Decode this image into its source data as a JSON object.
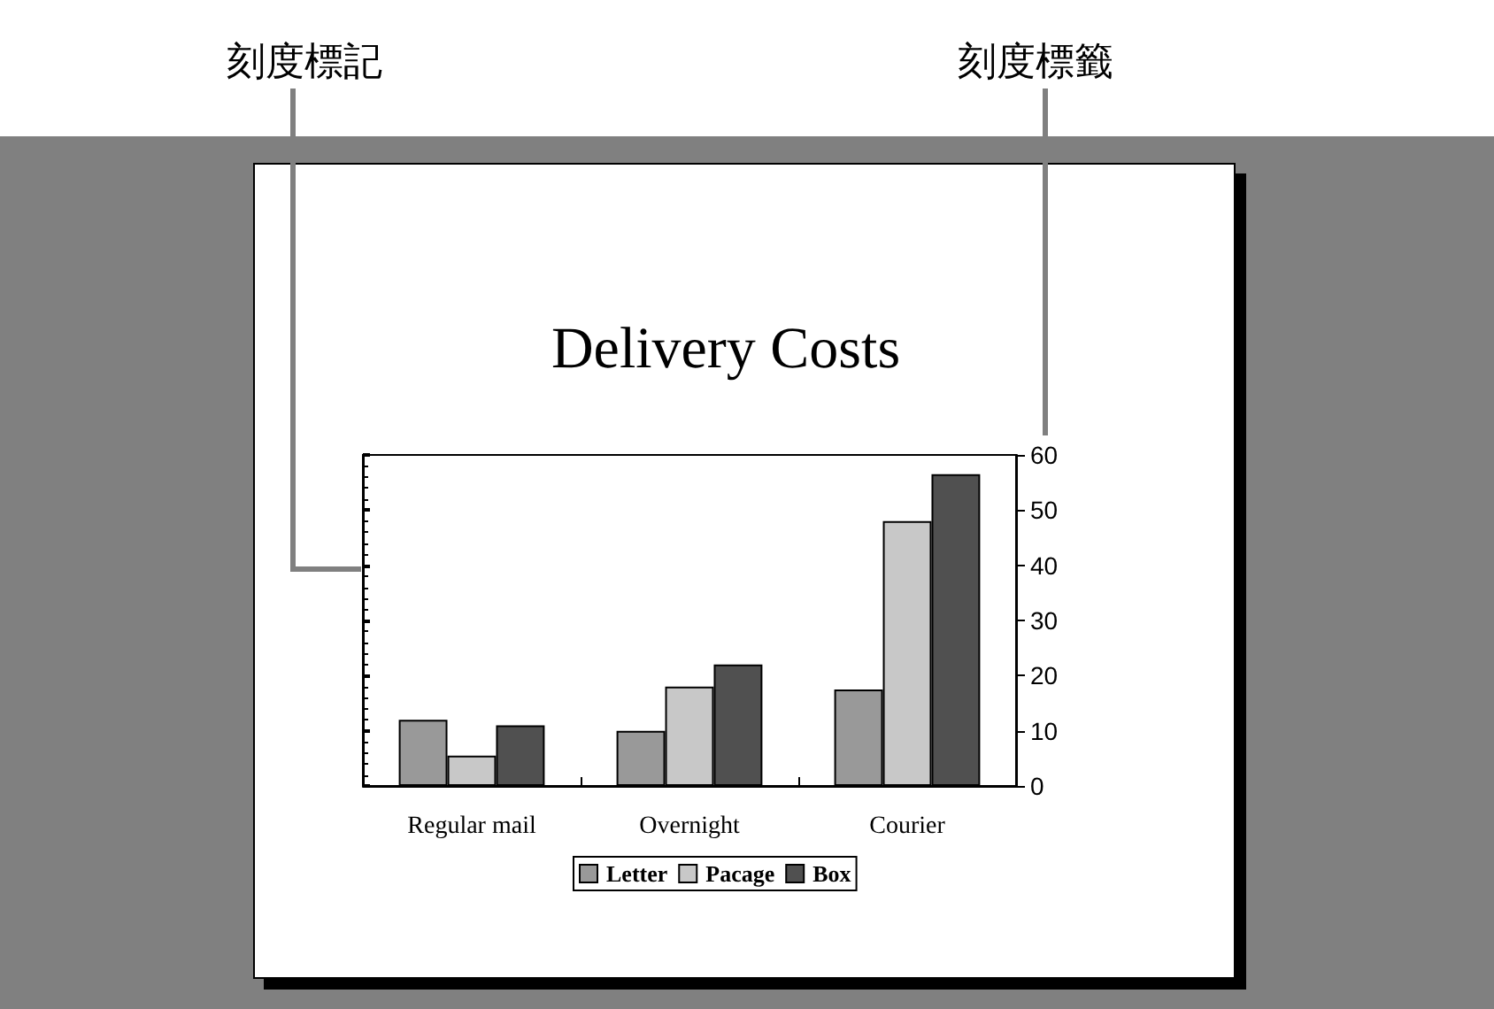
{
  "chart_data": {
    "type": "bar",
    "title": "Delivery Costs",
    "categories": [
      "Regular mail",
      "Overnight",
      "Courier"
    ],
    "series": [
      {
        "name": "Letter",
        "color": "#999999",
        "values": [
          12,
          10,
          17.5
        ]
      },
      {
        "name": "Pacage",
        "color": "#c8c8c8",
        "values": [
          5.5,
          18,
          48
        ]
      },
      {
        "name": "Box",
        "color": "#505050",
        "values": [
          11,
          22,
          56.5
        ]
      }
    ],
    "ylim": [
      0,
      60
    ],
    "yticks": [
      0,
      10,
      20,
      30,
      40,
      50,
      60
    ],
    "grid": false,
    "legend": "bottom",
    "annotations": [
      "刻度標記",
      "刻度標籤"
    ]
  }
}
